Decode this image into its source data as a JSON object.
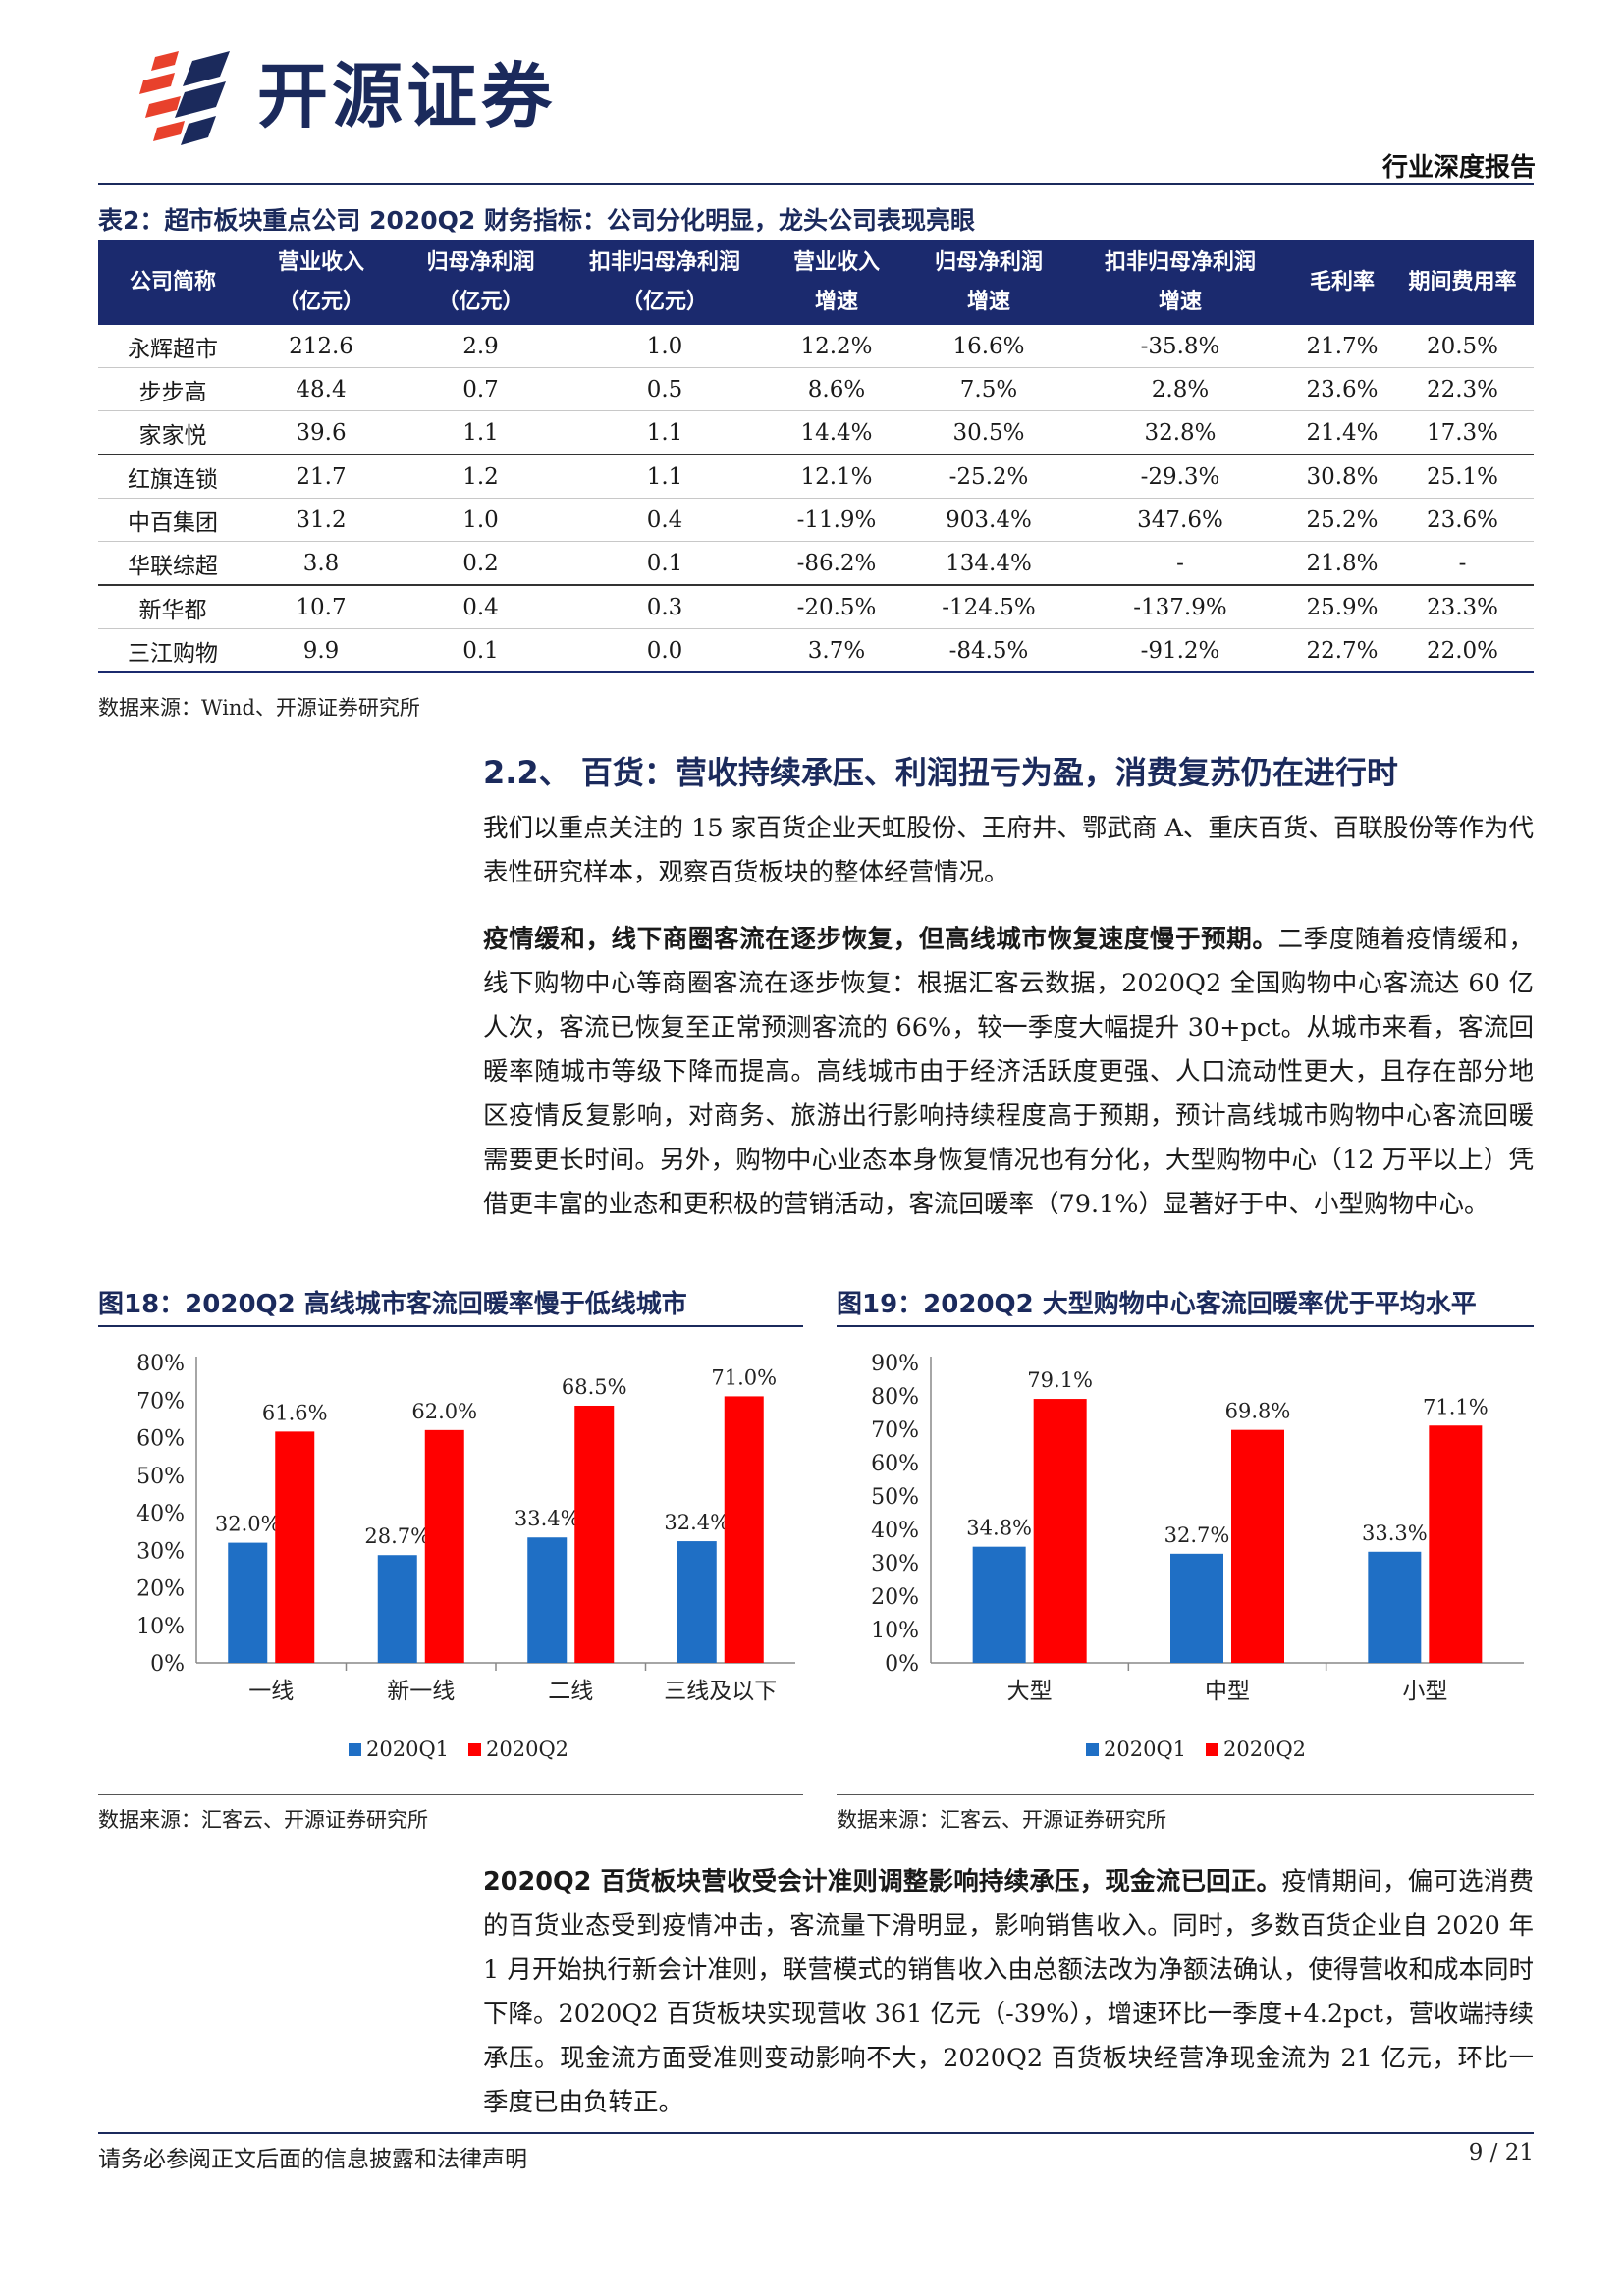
{
  "header": {
    "logo_text": "开源证券",
    "report_type": "行业深度报告"
  },
  "table": {
    "title": "表2：超市板块重点公司 2020Q2 财务指标：公司分化明显，龙头公司表现亮眼",
    "headers": [
      [
        "公司简称",
        ""
      ],
      [
        "营业收入",
        "（亿元）"
      ],
      [
        "归母净利润",
        "（亿元）"
      ],
      [
        "扣非归母净利润",
        "（亿元）"
      ],
      [
        "营业收入",
        "增速"
      ],
      [
        "归母净利润",
        "增速"
      ],
      [
        "扣非归母净利润",
        "增速"
      ],
      [
        "毛利率",
        ""
      ],
      [
        "期间费用率",
        ""
      ]
    ],
    "rows": [
      [
        "永辉超市",
        "212.6",
        "2.9",
        "1.0",
        "12.2%",
        "16.6%",
        "-35.8%",
        "21.7%",
        "20.5%"
      ],
      [
        "步步高",
        "48.4",
        "0.7",
        "0.5",
        "8.6%",
        "7.5%",
        "2.8%",
        "23.6%",
        "22.3%"
      ],
      [
        "家家悦",
        "39.6",
        "1.1",
        "1.1",
        "14.4%",
        "30.5%",
        "32.8%",
        "21.4%",
        "17.3%"
      ],
      [
        "红旗连锁",
        "21.7",
        "1.2",
        "1.1",
        "12.1%",
        "-25.2%",
        "-29.3%",
        "30.8%",
        "25.1%"
      ],
      [
        "中百集团",
        "31.2",
        "1.0",
        "0.4",
        "-11.9%",
        "903.4%",
        "347.6%",
        "25.2%",
        "23.6%"
      ],
      [
        "华联综超",
        "3.8",
        "0.2",
        "0.1",
        "-86.2%",
        "134.4%",
        "-",
        "21.8%",
        "-"
      ],
      [
        "新华都",
        "10.7",
        "0.4",
        "0.3",
        "-20.5%",
        "-124.5%",
        "-137.9%",
        "25.9%",
        "23.3%"
      ],
      [
        "三江购物",
        "9.9",
        "0.1",
        "0.0",
        "3.7%",
        "-84.5%",
        "-91.2%",
        "22.7%",
        "22.0%"
      ]
    ],
    "source": "数据来源：Wind、开源证券研究所"
  },
  "section": {
    "heading": "2.2、 百货：营收持续承压、利润扭亏为盈，消费复苏仍在进行时",
    "p1": "我们以重点关注的 15 家百货企业天虹股份、王府井、鄂武商 A、重庆百货、百联股份等作为代表性研究样本，观察百货板块的整体经营情况。",
    "p2_bold": "疫情缓和，线下商圈客流在逐步恢复，但高线城市恢复速度慢于预期。",
    "p2_text": "二季度随着疫情缓和，线下购物中心等商圈客流在逐步恢复：根据汇客云数据，2020Q2 全国购物中心客流达 60 亿人次，客流已恢复至正常预测客流的 66%，较一季度大幅提升 30+pct。从城市来看，客流回暖率随城市等级下降而提高。高线城市由于经济活跃度更强、人口流动性更大，且存在部分地区疫情反复影响，对商务、旅游出行影响持续程度高于预期，预计高线城市购物中心客流回暖需要更长时间。另外，购物中心业态本身恢复情况也有分化，大型购物中心（12 万平以上）凭借更丰富的业态和更积极的营销活动，客流回暖率（79.1%）显著好于中、小型购物中心。",
    "p3_bold": "2020Q2 百货板块营收受会计准则调整影响持续承压，现金流已回正。",
    "p3_text": "疫情期间，偏可选消费的百货业态受到疫情冲击，客流量下滑明显，影响销售收入。同时，多数百货企业自 2020 年 1 月开始执行新会计准则，联营模式的销售收入由总额法改为净额法确认，使得营收和成本同时下降。2020Q2 百货板块实现营收 361 亿元（-39%），增速环比一季度+4.2pct，营收端持续承压。现金流方面受准则变动影响不大，2020Q2 百货板块经营净现金流为 21 亿元，环比一季度已由负转正。"
  },
  "chart_data": [
    {
      "type": "bar",
      "title": "图18：2020Q2 高线城市客流回暖率慢于低线城市",
      "categories": [
        "一线",
        "新一线",
        "二线",
        "三线及以下"
      ],
      "series": [
        {
          "name": "2020Q1",
          "values": [
            32.0,
            28.7,
            33.4,
            32.4
          ],
          "labels": [
            "32.0%",
            "28.7%",
            "33.4%",
            "32.4%"
          ],
          "color": "#1f6fc5"
        },
        {
          "name": "2020Q2",
          "values": [
            61.6,
            62.0,
            68.5,
            71.0
          ],
          "labels": [
            "61.6%",
            "62.0%",
            "68.5%",
            "71.0%"
          ],
          "color": "#ff0000"
        }
      ],
      "yticks": [
        "0%",
        "10%",
        "20%",
        "30%",
        "40%",
        "50%",
        "60%",
        "70%",
        "80%"
      ],
      "ylim": [
        0,
        80
      ],
      "legend_position": "bottom",
      "source": "数据来源：汇客云、开源证券研究所"
    },
    {
      "type": "bar",
      "title": "图19：2020Q2 大型购物中心客流回暖率优于平均水平",
      "categories": [
        "大型",
        "中型",
        "小型"
      ],
      "series": [
        {
          "name": "2020Q1",
          "values": [
            34.8,
            32.7,
            33.3
          ],
          "labels": [
            "34.8%",
            "32.7%",
            "33.3%"
          ],
          "color": "#1f6fc5"
        },
        {
          "name": "2020Q2",
          "values": [
            79.1,
            69.8,
            71.1
          ],
          "labels": [
            "79.1%",
            "69.8%",
            "71.1%"
          ],
          "color": "#ff0000"
        }
      ],
      "yticks": [
        "0%",
        "10%",
        "20%",
        "30%",
        "40%",
        "50%",
        "60%",
        "70%",
        "80%",
        "90%"
      ],
      "ylim": [
        0,
        90
      ],
      "legend_position": "bottom",
      "source": "数据来源：汇客云、开源证券研究所"
    }
  ],
  "footer": {
    "disclaimer": "请务必参阅正文后面的信息披露和法律声明",
    "page": "9 / 21"
  }
}
